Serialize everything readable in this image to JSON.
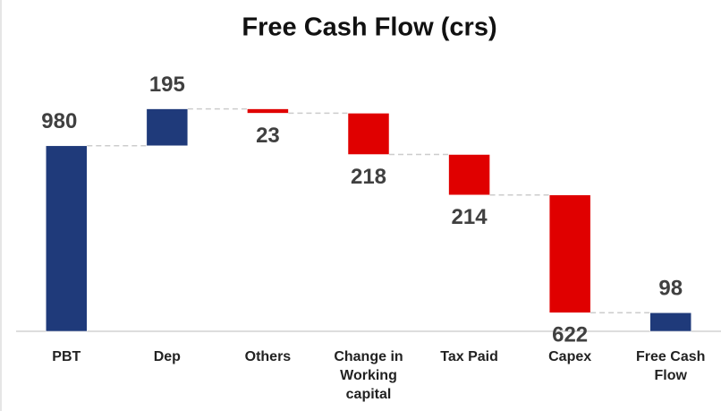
{
  "chart_data": {
    "type": "waterfall",
    "title": "Free Cash Flow (crs)",
    "categories": [
      "PBT",
      "Dep",
      "Others",
      "Change in Working capital",
      "Tax Paid",
      "Capex",
      "Free Cash Flow"
    ],
    "values": [
      980,
      195,
      -23,
      -218,
      -214,
      -622,
      98
    ],
    "value_labels": [
      "980",
      "195",
      "23",
      "218",
      "214",
      "622",
      "98"
    ],
    "increase_color": "#1f3a7a",
    "decrease_color": "#e00000",
    "ylim": [
      0,
      1400
    ]
  }
}
